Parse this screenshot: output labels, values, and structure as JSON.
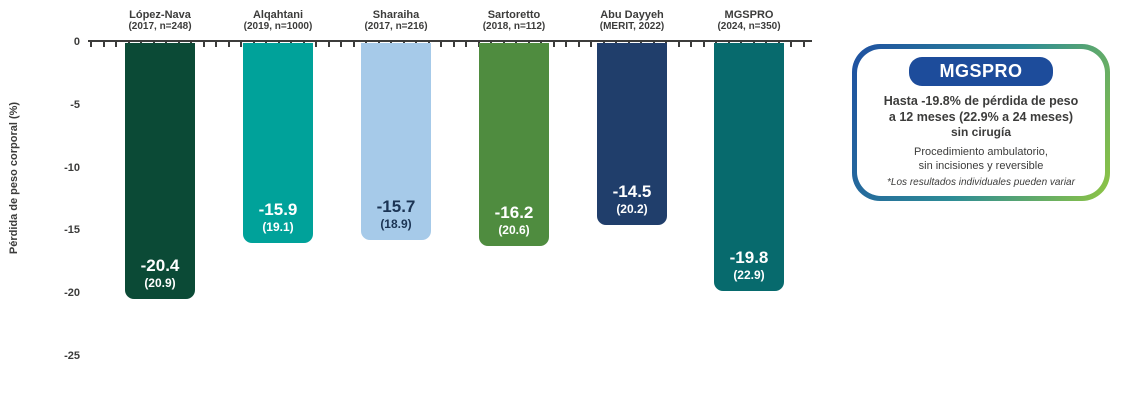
{
  "chart_data": {
    "type": "bar",
    "title": "",
    "ylabel": "Pérdida de peso corporal (%)",
    "ylim": [
      -27.5,
      0
    ],
    "yticks": [
      "0",
      "-5",
      "-10",
      "-15",
      "-20",
      "-25"
    ],
    "grid": false,
    "legend_position": "right",
    "bars": [
      {
        "label_line1": "López-Nava",
        "label_line2": "(2017, n=248)",
        "value": -20.4,
        "display": "-20.4",
        "sub": "(20.9)",
        "color": "#0B4A36",
        "text_color": "#FFFFFF"
      },
      {
        "label_line1": "Alqahtani",
        "label_line2": "(2019, n=1000)",
        "value": -15.9,
        "display": "-15.9",
        "sub": "(19.1)",
        "color": "#00A29A",
        "text_color": "#FFFFFF"
      },
      {
        "label_line1": "Sharaiha",
        "label_line2": "(2017, n=216)",
        "value": -15.7,
        "display": "-15.7",
        "sub": "(18.9)",
        "color": "#A6CAE9",
        "text_color": "#1B3454"
      },
      {
        "label_line1": "Sartoretto",
        "label_line2": "(2018, n=112)",
        "value": -16.2,
        "display": "-16.2",
        "sub": "(20.6)",
        "color": "#4F8C3F",
        "text_color": "#FFFFFF"
      },
      {
        "label_line1": "Abu Dayyeh",
        "label_line2": "(MERIT, 2022)",
        "value": -14.5,
        "display": "-14.5",
        "sub": "(20.2)",
        "color": "#203E6B",
        "text_color": "#FFFFFF"
      },
      {
        "label_line1": "MGSPRO",
        "label_line2": "(2024, n=350)",
        "value": -19.8,
        "display": "-19.8",
        "sub": "(22.9)",
        "color": "#076A6D",
        "text_color": "#FFFFFF"
      }
    ]
  },
  "info_box": {
    "title": "MGSPRO",
    "line1": "Hasta -19.8% de pérdida de peso",
    "line2": "a 12 meses (22.9% a 24 meses)",
    "line3": "sin cirugía",
    "line4": "Procedimiento ambulatorio,",
    "line5": "sin incisiones y reversible",
    "line6": "*Los resultados individuales pueden variar",
    "accent_blue": "#1D4C9B",
    "border_gradient": [
      "#1E4FA1",
      "#2D8C96",
      "#8FC542"
    ]
  }
}
